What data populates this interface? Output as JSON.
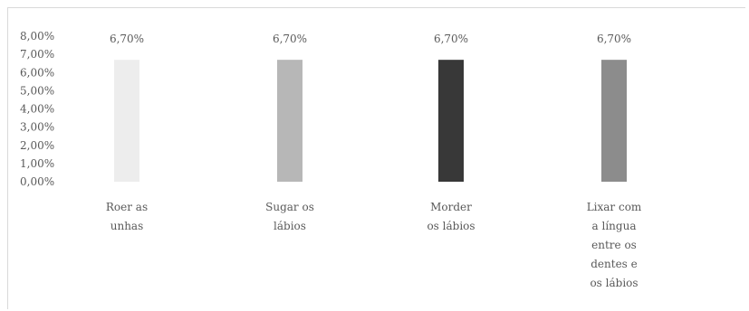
{
  "chart_data": {
    "type": "bar",
    "title": "",
    "xlabel": "",
    "ylabel": "",
    "ylim": [
      0,
      0.08
    ],
    "yticks": [
      "8,00%",
      "7,00%",
      "6,00%",
      "5,00%",
      "4,00%",
      "3,00%",
      "2,00%",
      "1,00%",
      "0,00%"
    ],
    "grid": false,
    "legend": "none",
    "categories": [
      [
        "Roer as",
        "unhas"
      ],
      [
        "Sugar os",
        "lábios"
      ],
      [
        "Morder",
        "os lábios"
      ],
      [
        "Lixar com",
        "a língua",
        "entre os",
        "dentes e",
        "os lábios"
      ]
    ],
    "values": [
      0.067,
      0.067,
      0.067,
      0.067
    ],
    "data_labels": [
      "6,70%",
      "6,70%",
      "6,70%",
      "6,70%"
    ],
    "colors": [
      "#ededed",
      "#b7b7b7",
      "#383838",
      "#8c8c8c"
    ]
  }
}
